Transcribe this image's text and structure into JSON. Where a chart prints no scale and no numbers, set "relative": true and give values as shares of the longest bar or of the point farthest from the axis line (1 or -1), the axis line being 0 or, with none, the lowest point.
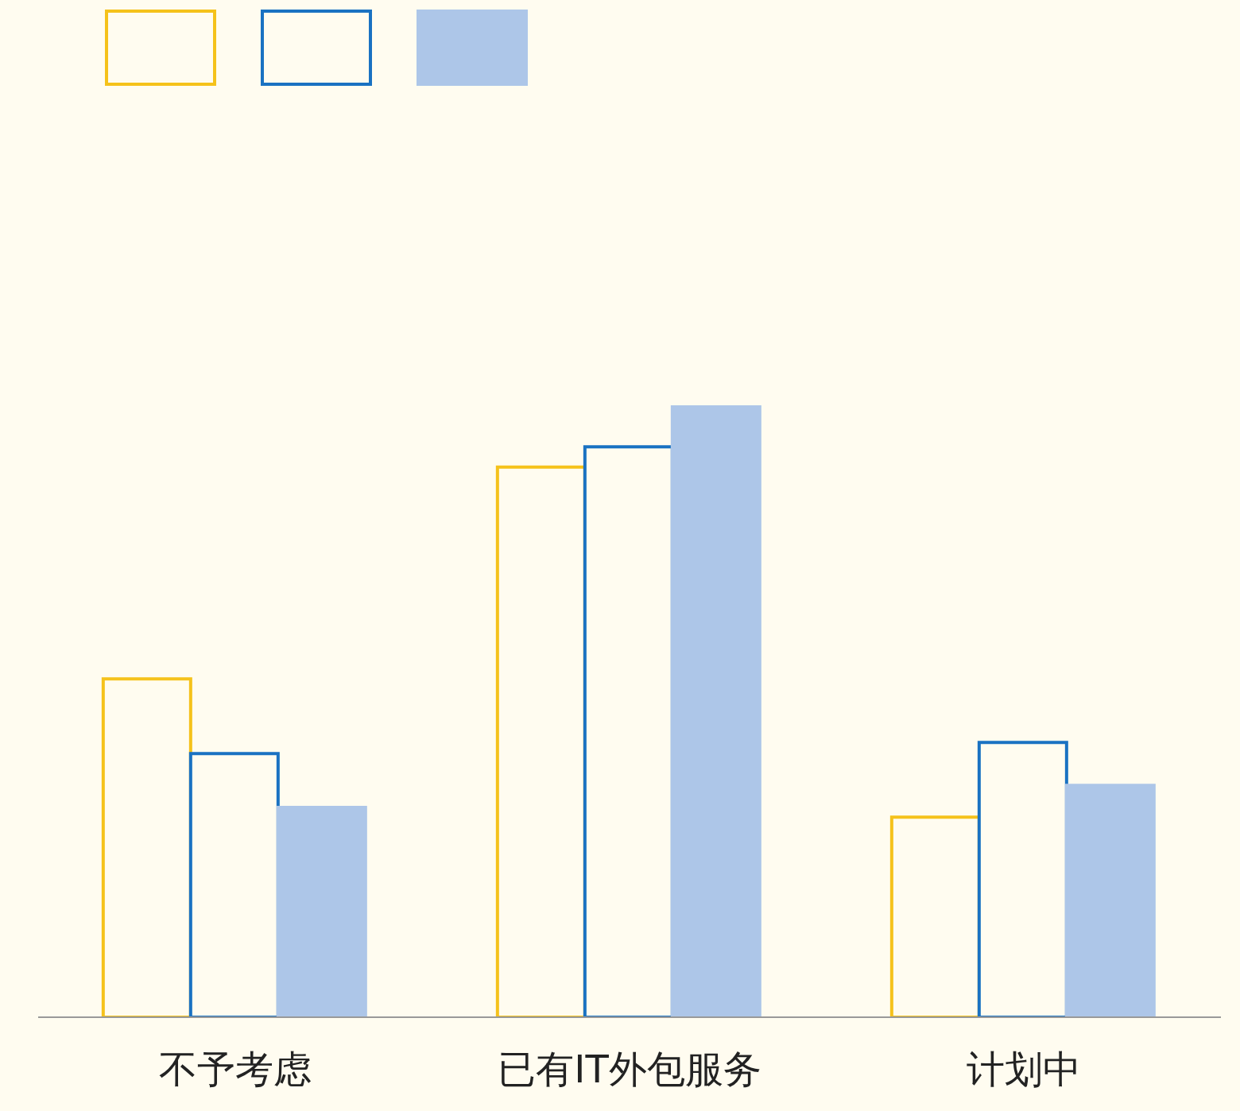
{
  "chart_data": {
    "type": "bar",
    "relative": true,
    "categories": [
      "不予考虑",
      "已有IT外包服务",
      "计划中"
    ],
    "series": [
      {
        "color": "#f5c21b",
        "values": [
          0.553,
          0.899,
          0.327
        ]
      },
      {
        "color": "#1a72c2",
        "values": [
          0.431,
          0.932,
          0.449
        ]
      },
      {
        "color": "#adc6e8",
        "values": [
          0.343,
          1,
          0.379
        ]
      }
    ]
  }
}
